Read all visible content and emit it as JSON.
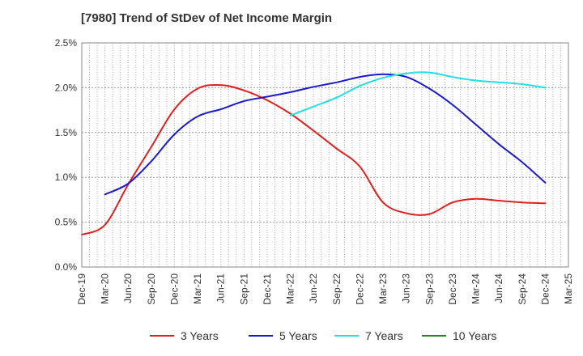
{
  "chart_data": {
    "type": "line",
    "title": "[7980]  Trend of StDev of Net Income Margin",
    "xlabel": "",
    "ylabel": "",
    "x_ticks": [
      "Dec-19",
      "Mar-20",
      "Jun-20",
      "Sep-20",
      "Dec-20",
      "Mar-21",
      "Jun-21",
      "Sep-21",
      "Dec-21",
      "Mar-22",
      "Jun-22",
      "Sep-22",
      "Dec-22",
      "Mar-23",
      "Jun-23",
      "Sep-23",
      "Dec-23",
      "Mar-24",
      "Jun-24",
      "Sep-24",
      "Dec-24",
      "Mar-25"
    ],
    "y_ticks": [
      0.0,
      0.5,
      1.0,
      1.5,
      2.0,
      2.5
    ],
    "y_tick_labels": [
      "0.0%",
      "0.5%",
      "1.0%",
      "1.5%",
      "2.0%",
      "2.5%"
    ],
    "ylim": [
      0,
      2.5
    ],
    "grid": true,
    "legend_position": "bottom",
    "series": [
      {
        "name": "3 Years",
        "color": "#e02020",
        "points": [
          [
            "Dec-19",
            0.36
          ],
          [
            "Mar-20",
            0.47
          ],
          [
            "Jun-20",
            0.92
          ],
          [
            "Sep-20",
            1.34
          ],
          [
            "Dec-20",
            1.76
          ],
          [
            "Mar-21",
            1.99
          ],
          [
            "Jun-21",
            2.03
          ],
          [
            "Sep-21",
            1.97
          ],
          [
            "Dec-21",
            1.86
          ],
          [
            "Mar-22",
            1.71
          ],
          [
            "Jun-22",
            1.52
          ],
          [
            "Sep-22",
            1.32
          ],
          [
            "Dec-22",
            1.12
          ],
          [
            "Mar-23",
            0.72
          ],
          [
            "Jun-23",
            0.6
          ],
          [
            "Sep-23",
            0.59
          ],
          [
            "Dec-23",
            0.72
          ],
          [
            "Mar-24",
            0.76
          ],
          [
            "Jun-24",
            0.74
          ],
          [
            "Sep-24",
            0.72
          ],
          [
            "Dec-24",
            0.71
          ]
        ]
      },
      {
        "name": "5 Years",
        "color": "#1a1acc",
        "points": [
          [
            "Mar-20",
            0.81
          ],
          [
            "Jun-20",
            0.93
          ],
          [
            "Sep-20",
            1.18
          ],
          [
            "Dec-20",
            1.48
          ],
          [
            "Mar-21",
            1.68
          ],
          [
            "Jun-21",
            1.76
          ],
          [
            "Sep-21",
            1.85
          ],
          [
            "Dec-21",
            1.9
          ],
          [
            "Mar-22",
            1.95
          ],
          [
            "Jun-22",
            2.01
          ],
          [
            "Sep-22",
            2.06
          ],
          [
            "Dec-22",
            2.12
          ],
          [
            "Mar-23",
            2.15
          ],
          [
            "Jun-23",
            2.12
          ],
          [
            "Sep-23",
            1.99
          ],
          [
            "Dec-23",
            1.81
          ],
          [
            "Mar-24",
            1.59
          ],
          [
            "Jun-24",
            1.37
          ],
          [
            "Sep-24",
            1.17
          ],
          [
            "Dec-24",
            0.94
          ]
        ]
      },
      {
        "name": "7 Years",
        "color": "#20e0e0",
        "points": [
          [
            "Mar-22",
            1.69
          ],
          [
            "Jun-22",
            1.79
          ],
          [
            "Sep-22",
            1.89
          ],
          [
            "Dec-22",
            2.02
          ],
          [
            "Mar-23",
            2.11
          ],
          [
            "Jun-23",
            2.16
          ],
          [
            "Sep-23",
            2.17
          ],
          [
            "Dec-23",
            2.12
          ],
          [
            "Mar-24",
            2.08
          ],
          [
            "Jun-24",
            2.06
          ],
          [
            "Sep-24",
            2.04
          ],
          [
            "Dec-24",
            2.0
          ]
        ]
      },
      {
        "name": "10 Years",
        "color": "#228822",
        "points": []
      }
    ]
  }
}
